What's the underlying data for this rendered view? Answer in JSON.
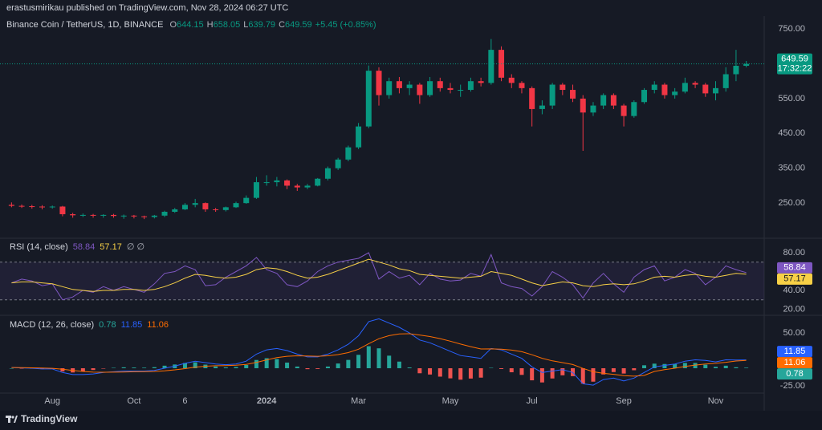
{
  "header": {
    "text": "erastusmirikau published on TradingView.com, Nov 28, 2024 06:27 UTC"
  },
  "footer": {
    "brand": "TradingView"
  },
  "chart_data": [
    {
      "type": "candlestick",
      "title": "Binance Coin / TetherUS, 1D, BINANCE",
      "ohlc_labels": [
        "O",
        "H",
        "L",
        "C"
      ],
      "change": "+5.45 (+0.85%)",
      "countdown": "17:32:22",
      "colors": {
        "up": "#089981",
        "down": "#f23645"
      },
      "ylim": [
        149,
        787
      ],
      "yticks": [
        {
          "value": 250,
          "label": "250.00"
        },
        {
          "value": 350,
          "label": "350.00"
        },
        {
          "value": 450,
          "label": "450.00"
        },
        {
          "value": 550,
          "label": "550.00"
        },
        {
          "value": 750,
          "label": "750.00"
        }
      ],
      "open": [
        245,
        242,
        241,
        240,
        238,
        240,
        218,
        215,
        216,
        214,
        216,
        213,
        214,
        212,
        210,
        214,
        225,
        232,
        245,
        250,
        232,
        230,
        238,
        250,
        265,
        310,
        310,
        315,
        300,
        295,
        300,
        320,
        350,
        375,
        410,
        470,
        630,
        560,
        600,
        580,
        590,
        560,
        600,
        580,
        575,
        575,
        600,
        595,
        690,
        610,
        595,
        580,
        520,
        530,
        590,
        575,
        550,
        510,
        530,
        560,
        530,
        500,
        540,
        575,
        590,
        560,
        570,
        595,
        590,
        565,
        580,
        620,
        644.15
      ],
      "high": [
        252,
        246,
        245,
        244,
        243,
        242,
        222,
        220,
        219,
        218,
        219,
        217,
        216,
        214,
        216,
        228,
        236,
        250,
        262,
        252,
        236,
        240,
        254,
        272,
        325,
        330,
        325,
        318,
        305,
        305,
        322,
        355,
        380,
        415,
        480,
        645,
        640,
        610,
        612,
        600,
        595,
        612,
        610,
        595,
        590,
        610,
        610,
        721,
        700,
        620,
        600,
        585,
        545,
        595,
        595,
        590,
        560,
        540,
        565,
        565,
        535,
        545,
        580,
        600,
        595,
        580,
        610,
        600,
        595,
        600,
        640,
        690,
        658.05
      ],
      "low": [
        238,
        236,
        234,
        232,
        234,
        212,
        208,
        210,
        208,
        208,
        208,
        205,
        206,
        204,
        206,
        210,
        222,
        230,
        238,
        225,
        225,
        226,
        236,
        248,
        262,
        300,
        298,
        290,
        285,
        290,
        298,
        315,
        345,
        370,
        405,
        465,
        530,
        550,
        565,
        560,
        535,
        555,
        570,
        565,
        555,
        570,
        585,
        590,
        600,
        580,
        565,
        470,
        505,
        520,
        560,
        540,
        400,
        500,
        520,
        520,
        470,
        495,
        535,
        565,
        550,
        550,
        565,
        580,
        555,
        545,
        570,
        600,
        639.79
      ],
      "close": [
        242,
        241,
        240,
        238,
        240,
        218,
        215,
        216,
        214,
        216,
        213,
        214,
        212,
        210,
        214,
        225,
        232,
        245,
        250,
        232,
        230,
        238,
        250,
        265,
        310,
        310,
        315,
        300,
        295,
        300,
        320,
        350,
        375,
        410,
        470,
        630,
        560,
        600,
        580,
        590,
        560,
        600,
        580,
        575,
        575,
        600,
        595,
        690,
        610,
        595,
        580,
        520,
        530,
        590,
        575,
        550,
        510,
        530,
        560,
        530,
        500,
        540,
        575,
        590,
        560,
        570,
        595,
        590,
        565,
        580,
        620,
        644.15,
        649.59
      ]
    },
    {
      "type": "line",
      "title": "RSI (14, close)",
      "status": "∅ ∅",
      "ylim": [
        13.6,
        95.3
      ],
      "band": [
        30,
        70
      ],
      "band_color": "#7e57c2",
      "yticks": [
        {
          "value": 80,
          "label": "80.00"
        },
        {
          "value": 40,
          "label": "40.00"
        },
        {
          "value": 20,
          "label": "20.00"
        }
      ],
      "series": [
        {
          "color": "#7e57c2",
          "values": [
            48,
            52,
            50,
            45,
            47,
            30,
            33,
            40,
            38,
            44,
            40,
            44,
            41,
            38,
            47,
            58,
            60,
            66,
            62,
            45,
            46,
            54,
            60,
            66,
            75,
            62,
            58,
            46,
            44,
            50,
            60,
            66,
            70,
            72,
            74,
            80,
            52,
            60,
            53,
            56,
            46,
            58,
            52,
            50,
            51,
            58,
            55,
            78,
            48,
            44,
            42,
            34,
            44,
            60,
            54,
            46,
            32,
            48,
            58,
            47,
            38,
            54,
            62,
            66,
            50,
            54,
            62,
            58,
            46,
            54,
            66,
            62,
            58.84
          ]
        },
        {
          "color": "#f7d046",
          "values": [
            48,
            49,
            49,
            48,
            47,
            44,
            41,
            40,
            39,
            40,
            40,
            41,
            41,
            40,
            41,
            44,
            48,
            53,
            57,
            56,
            54,
            53,
            54,
            57,
            62,
            64,
            63,
            60,
            56,
            53,
            54,
            57,
            61,
            65,
            69,
            73,
            70,
            67,
            63,
            61,
            57,
            56,
            55,
            54,
            53,
            54,
            55,
            60,
            58,
            56,
            52,
            48,
            45,
            47,
            49,
            48,
            45,
            44,
            46,
            47,
            46,
            47,
            50,
            54,
            55,
            54,
            56,
            57,
            55,
            54,
            56,
            58,
            57.17
          ]
        }
      ]
    },
    {
      "type": "macd",
      "title": "MACD (12, 26, close)",
      "ylim": [
        -35.2,
        75
      ],
      "yticks": [
        {
          "value": 50,
          "label": "50.00"
        },
        {
          "value": -25,
          "label": "-25.00"
        }
      ],
      "categories": [
        null,
        null,
        null,
        null,
        "Aug",
        null,
        null,
        null,
        null,
        null,
        null,
        null,
        "Oct",
        null,
        null,
        null,
        null,
        "6",
        null,
        null,
        null,
        null,
        null,
        null,
        null,
        "2024",
        null,
        null,
        null,
        null,
        null,
        null,
        null,
        null,
        "Mar",
        null,
        null,
        null,
        null,
        null,
        null,
        null,
        null,
        "May",
        null,
        null,
        null,
        null,
        null,
        null,
        null,
        "Jul",
        null,
        null,
        null,
        null,
        null,
        null,
        null,
        null,
        "Sep",
        null,
        null,
        null,
        null,
        null,
        null,
        null,
        null,
        "Nov",
        null,
        null,
        null
      ],
      "histogram": {
        "colors": {
          "up": "#26a69a",
          "down": "#ef5350"
        },
        "values": [
          0,
          -0.3,
          -0.6,
          -1.2,
          -0.9,
          -4.5,
          -6,
          -4.5,
          -2.5,
          -0.3,
          0.6,
          1.3,
          1,
          0.8,
          1.5,
          3.6,
          5.3,
          7.5,
          8.4,
          5.1,
          2.5,
          1.2,
          1.8,
          4.6,
          11.7,
          14.2,
          13,
          8,
          2.4,
          -1.3,
          -1,
          2.4,
          6.7,
          11.8,
          19,
          31.2,
          28.2,
          17.8,
          9.4,
          1.1,
          -7.1,
          -8.9,
          -11.9,
          -14.3,
          -16.2,
          -14.6,
          -13.3,
          0.6,
          -1.1,
          -5.7,
          -9.4,
          -17.1,
          -20.1,
          -14.5,
          -10,
          -11.2,
          -21.8,
          -19,
          -8.8,
          -5.4,
          -7.5,
          -2.8,
          4.2,
          6.5,
          6,
          6,
          7.5,
          7.5,
          5,
          2,
          3.6,
          1.4,
          0.78
        ]
      },
      "series": [
        {
          "color": "#2962ff",
          "values": [
            1,
            0.5,
            0,
            -1,
            -1,
            -6,
            -9,
            -9,
            -8,
            -6,
            -5,
            -4,
            -4,
            -4,
            -3,
            0,
            3,
            7,
            10,
            8,
            6,
            5,
            6,
            10,
            20,
            26,
            28,
            25,
            20,
            16,
            16,
            20,
            26,
            34,
            46,
            66,
            70,
            64,
            58,
            50,
            40,
            36,
            30,
            24,
            18,
            16,
            14,
            28,
            26,
            20,
            14,
            2,
            -6,
            -4,
            -2,
            -6,
            -22,
            -24,
            -16,
            -14,
            -18,
            -14,
            -6,
            2,
            4,
            6,
            10,
            12,
            11,
            9,
            12,
            11.6,
            11.85
          ]
        },
        {
          "color": "#ff6d00",
          "values": [
            1,
            0.8,
            0.6,
            0.2,
            -0.1,
            -1.5,
            -3,
            -4.5,
            -5.5,
            -5.7,
            -5.6,
            -5.3,
            -5,
            -4.8,
            -4.5,
            -3.6,
            -2.3,
            -0.5,
            1.6,
            2.9,
            3.5,
            3.8,
            4.2,
            5.4,
            8.3,
            11.8,
            15,
            17,
            17.6,
            17.3,
            17,
            17.6,
            19.3,
            22.2,
            27,
            34.8,
            41.8,
            46.2,
            48.6,
            48.9,
            47.1,
            44.9,
            41.9,
            38.3,
            34.2,
            30.6,
            27.3,
            27.4,
            27.1,
            25.7,
            23.4,
            19.1,
            14.1,
            10.5,
            8,
            5.2,
            -0.2,
            -5,
            -7.2,
            -8.6,
            -10.5,
            -11.2,
            -10.2,
            -4.5,
            -2,
            0,
            2.5,
            4.5,
            6,
            7,
            8.4,
            10.2,
            11.06
          ]
        }
      ]
    }
  ]
}
